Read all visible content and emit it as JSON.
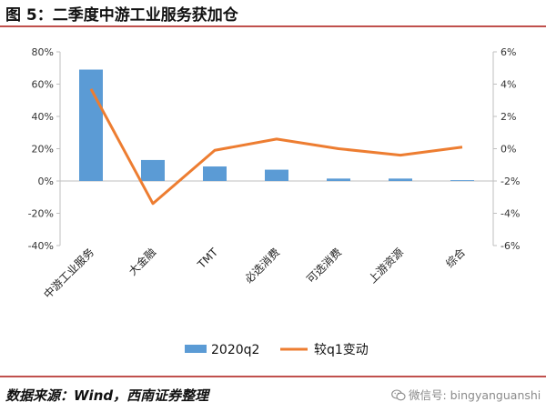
{
  "figure": {
    "title": "图 5：二季度中游工业服务获加仓",
    "source": "数据来源：Wind，西南证券整理",
    "watermark": "微信号: bingyanguanshi",
    "watermark_icon": "wechat-icon"
  },
  "colors": {
    "bar": "#5b9bd5",
    "line": "#ed7d31",
    "rule": "#c0504d",
    "axis": "#bfbfbf"
  },
  "chart_data": {
    "type": "bar",
    "categories": [
      "中游工业服务",
      "大金融",
      "TMT",
      "必选消费",
      "可选消费",
      "上游资源",
      "综合"
    ],
    "series": [
      {
        "name": "2020q2",
        "type": "bar",
        "axis": "left",
        "values": [
          69,
          13,
          9,
          7,
          1.5,
          1.5,
          0.5
        ]
      },
      {
        "name": "较q1变动",
        "type": "line",
        "axis": "right",
        "values": [
          3.7,
          -3.4,
          -0.1,
          0.6,
          0.0,
          -0.4,
          0.1
        ]
      }
    ],
    "left_axis": {
      "ylim": [
        -40,
        80
      ],
      "ticks": [
        -40,
        -20,
        0,
        20,
        40,
        60,
        80
      ],
      "tick_labels": [
        "-40%",
        "-20%",
        "0%",
        "20%",
        "40%",
        "60%",
        "80%"
      ]
    },
    "right_axis": {
      "ylim": [
        -6,
        6
      ],
      "ticks": [
        -6,
        -4,
        -2,
        0,
        2,
        4,
        6
      ],
      "tick_labels": [
        "-6%",
        "-4%",
        "-2%",
        "0%",
        "2%",
        "4%",
        "6%"
      ]
    },
    "grid": false,
    "legend": "bottom"
  }
}
